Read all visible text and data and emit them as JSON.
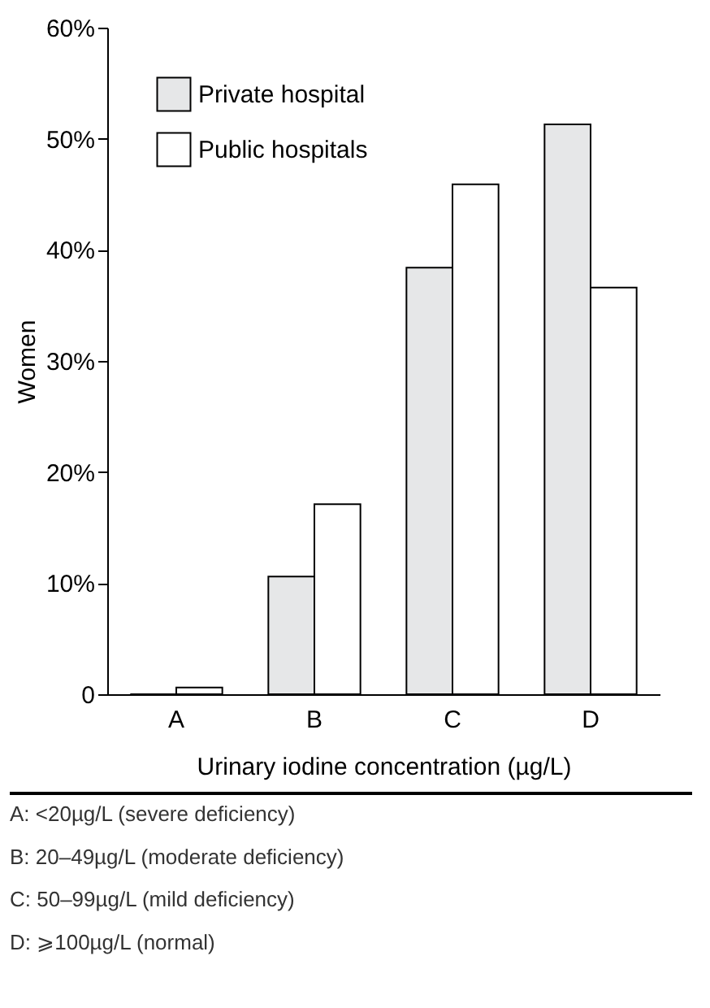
{
  "chart_data": {
    "type": "bar",
    "xlabel": "Urinary iodine concentration (µg/L)",
    "ylabel": "Women",
    "categories": [
      "A",
      "B",
      "C",
      "D"
    ],
    "series": [
      {
        "name": "Private hospital",
        "color": "#e6e7e8",
        "values": [
          0,
          10.6,
          38.4,
          51.3
        ]
      },
      {
        "name": "Public hospitals",
        "color": "#ffffff",
        "values": [
          0.6,
          17.1,
          45.9,
          36.6
        ]
      }
    ],
    "ylim": [
      0,
      60
    ],
    "yticks": [
      0,
      {
        "value": 10,
        "label": "10%"
      },
      {
        "value": 20,
        "label": "20%"
      },
      {
        "value": 30,
        "label": "30%"
      },
      {
        "value": 40,
        "label": "40%"
      },
      {
        "value": 50,
        "label": "50%"
      },
      {
        "value": 60,
        "label": "60%"
      }
    ],
    "grid": false,
    "legend": "top left",
    "annotations": [
      "A: <20µg/L (severe deficiency)",
      "B: 20–49µg/L (moderate deficiency)",
      "C: 50–99µg/L (mild deficiency)",
      "D: ⩾100µg/L (normal)"
    ]
  }
}
